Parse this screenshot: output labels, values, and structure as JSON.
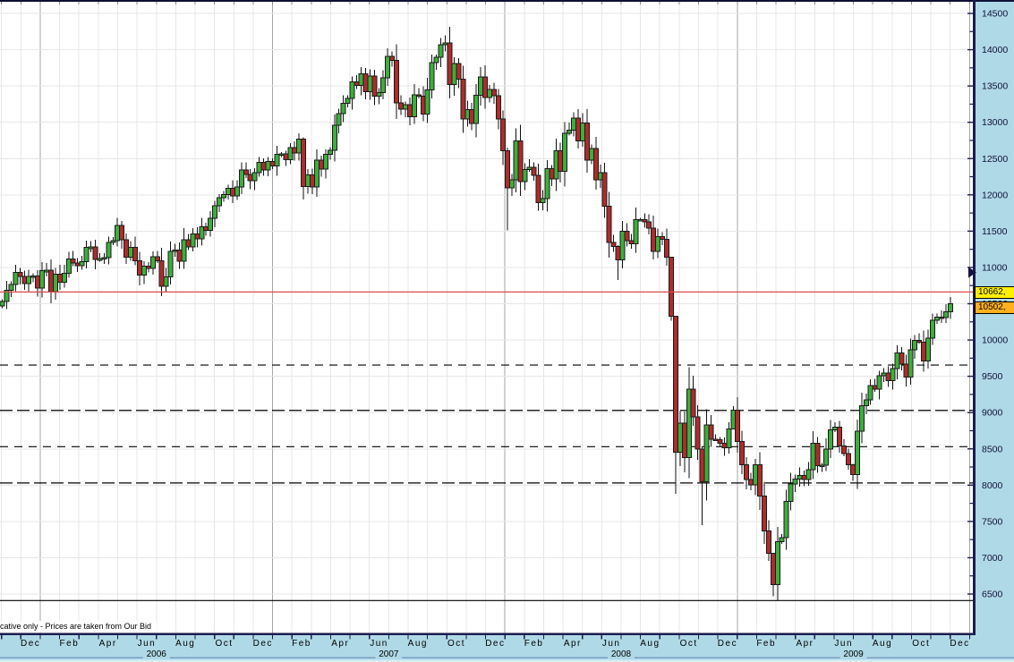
{
  "disclaimer": {
    "text": "cative only - Prices are taken from Our Bid"
  },
  "price_labels": {
    "level": "10662,",
    "last": "10502,"
  },
  "colors": {
    "up_candle": "#3CAE3C",
    "down_candle": "#AE2C2C",
    "candle_border": "#1A1A1A",
    "wick": "#111111",
    "grid": "#E7E7E7",
    "grid_year": "#A6A6A6",
    "axis_blue": "#AFD9E6",
    "axis_blue_light": "#D6EDF5",
    "axis_line": "#1C1C4E",
    "strip_separator": "#7D9EC0",
    "level_red": "#D94B4B",
    "level_black": "#000000",
    "label_yellow": "#FFF000",
    "label_orange": "#FFB01E",
    "tick_text": "#10103A"
  },
  "chart_data": {
    "type": "candlestick",
    "timeframe": "weekly",
    "title": "",
    "grid": true,
    "y_axis": {
      "min": 6500,
      "max": 14500,
      "step": 500,
      "tick_labels": [
        "14500",
        "14000",
        "13500",
        "13000",
        "12500",
        "12000",
        "11500",
        "11000",
        "10500",
        "10000",
        "9500",
        "9000",
        "8500",
        "8000",
        "7500",
        "7000",
        "6500"
      ]
    },
    "x_axis": {
      "months": [
        "Oct",
        "Dec",
        "Feb",
        "Apr",
        "Jun",
        "Aug",
        "Oct",
        "Dec",
        "Feb",
        "Apr",
        "Jun",
        "Aug",
        "Oct",
        "Dec",
        "Feb",
        "Apr",
        "Jun",
        "Aug",
        "Oct",
        "Dec",
        "Feb",
        "Apr",
        "Jun",
        "Aug",
        "Oct",
        "Dec"
      ],
      "first_month_clipped": true,
      "years": [
        "2006",
        "2007",
        "2008",
        "2009"
      ]
    },
    "levels": [
      {
        "price": 10662,
        "style": "solid",
        "color": "#D94B4B",
        "name": "red-resistance-line"
      },
      {
        "price": 9655,
        "style": "dash-short",
        "color": "#000000",
        "name": "dashed-level-1"
      },
      {
        "price": 9030,
        "style": "dash-long",
        "color": "#000000",
        "name": "dashed-level-2"
      },
      {
        "price": 8530,
        "style": "dash-short",
        "color": "#000000",
        "name": "dashed-level-3"
      },
      {
        "price": 8030,
        "style": "dash-long",
        "color": "#000000",
        "name": "dashed-level-4"
      },
      {
        "price": 6410,
        "style": "solid",
        "color": "#000000",
        "name": "solid-base-line"
      }
    ],
    "current_price": 10502,
    "marked_level": 10662,
    "weekly_closes": [
      10531,
      10686,
      10766,
      10932,
      10878,
      10778,
      10875,
      10883,
      10718,
      10959,
      10960,
      10667,
      10907,
      10793,
      10919,
      11116,
      11062,
      11022,
      11077,
      11279,
      11280,
      11109,
      11120,
      11137,
      11347,
      11367,
      11578,
      11381,
      11144,
      11279,
      11090,
      10892,
      11015,
      10989,
      11150,
      11091,
      10739,
      10868,
      11220,
      11240,
      11088,
      11381,
      11284,
      11464,
      11392,
      11560,
      11508,
      11679,
      11850,
      11960,
      12002,
      12090,
      11986,
      12108,
      12342,
      12280,
      12194,
      12307,
      12445,
      12343,
      12463,
      12398,
      12556,
      12565,
      12487,
      12653,
      12580,
      12767,
      12114,
      12276,
      12110,
      12481,
      12354,
      12560,
      12612,
      12962,
      13121,
      13264,
      13326,
      13557,
      13507,
      13668,
      13424,
      13639,
      13360,
      13409,
      13612,
      13907,
      13851,
      13266,
      13182,
      13240,
      13079,
      13379,
      13358,
      13113,
      13443,
      13820,
      13896,
      14066,
      14093,
      13522,
      13807,
      13595,
      13043,
      13177,
      12981,
      13372,
      13626,
      13340,
      13451,
      13366,
      13044,
      12606,
      12099,
      12207,
      12743,
      12182,
      12348,
      12381,
      12266,
      11894,
      11951,
      12361,
      12217,
      12610,
      12325,
      12849,
      12892,
      13058,
      12746,
      12987,
      12480,
      12638,
      12209,
      12307,
      11843,
      11346,
      11289,
      11101,
      11497,
      11370,
      11326,
      11659,
      11660,
      11628,
      11544,
      11221,
      11422,
      11388,
      11143,
      10325,
      8451,
      8852,
      8379,
      9325,
      8943,
      8497,
      8046,
      8829,
      8635,
      8629,
      8579,
      8515,
      8776,
      9035,
      8599,
      8281,
      8078,
      8001,
      8281,
      7850,
      7366,
      7063,
      6627,
      7224,
      7278,
      7776,
      8018,
      8083,
      8131,
      8076,
      8212,
      8575,
      8269,
      8277,
      8500,
      8763,
      8799,
      8540,
      8438,
      8281,
      8147,
      8744,
      9093,
      9172,
      9370,
      9321,
      9506,
      9544,
      9441,
      9605,
      9820,
      9665,
      9488,
      9865,
      9996,
      9972,
      9713,
      10023,
      10270,
      10318,
      10310,
      10389,
      10502
    ],
    "ohlc_overrides": {
      "68": [
        12767,
        12795,
        11939,
        12114
      ],
      "100": [
        14066,
        14198,
        13975,
        14093
      ],
      "114": [
        12606,
        12650,
        11508,
        12099
      ],
      "139": [
        11289,
        11310,
        10828,
        11101
      ],
      "151": [
        11143,
        11143,
        10266,
        10325
      ],
      "152": [
        10325,
        10325,
        7882,
        8451
      ],
      "154": [
        8852,
        9015,
        8175,
        8379
      ],
      "158": [
        8497,
        8520,
        7449,
        8046
      ],
      "165": [
        8776,
        9088,
        8770,
        9035
      ],
      "174": [
        7063,
        7063,
        6470,
        6627
      ],
      "192": [
        8281,
        8295,
        8057,
        8147
      ]
    }
  }
}
